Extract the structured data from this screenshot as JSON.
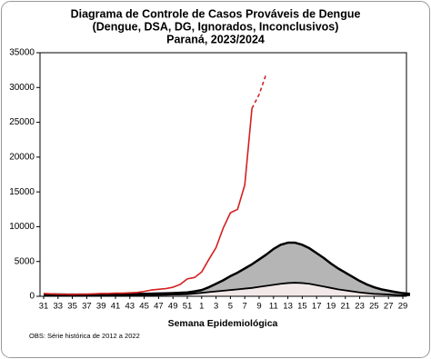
{
  "chart_data": {
    "type": "line",
    "title": [
      "Diagrama de Controle de Casos Prováveis de Dengue",
      "(Dengue, DSA, DG, Ignorados, Inconclusivos)",
      "Paraná, 2023/2024"
    ],
    "x_label": "Semana Epidemiológica",
    "note": "OBS: Série histórica de 2012 a 2022",
    "categories": [
      "31",
      null,
      "33",
      null,
      "35",
      null,
      "37",
      null,
      "39",
      null,
      "41",
      null,
      "43",
      null,
      "45",
      null,
      "47",
      null,
      "49",
      null,
      "51",
      null,
      "1",
      null,
      "3",
      null,
      "5",
      null,
      "7",
      null,
      "9",
      null,
      "11",
      null,
      "13",
      null,
      "15",
      null,
      "17",
      null,
      "19",
      null,
      "21",
      null,
      "23",
      null,
      "25",
      null,
      "27",
      null,
      "29",
      null
    ],
    "ylim": [
      0,
      35000
    ],
    "yticks": [
      0,
      5000,
      10000,
      15000,
      20000,
      25000,
      30000,
      35000
    ],
    "series": [
      {
        "color": "#d9d9d9",
        "fill": "#b5b5b5",
        "line_width": 2.5,
        "line_color": "#000000",
        "values": [
          300,
          280,
          260,
          250,
          250,
          250,
          250,
          250,
          260,
          270,
          280,
          300,
          320,
          340,
          360,
          380,
          400,
          430,
          460,
          500,
          560,
          700,
          900,
          1300,
          1800,
          2300,
          2900,
          3400,
          4000,
          4600,
          5300,
          6000,
          6800,
          7400,
          7700,
          7700,
          7400,
          6900,
          6200,
          5500,
          4700,
          4000,
          3400,
          2800,
          2200,
          1700,
          1300,
          1000,
          800,
          600,
          450,
          350
        ]
      },
      {
        "color": "#000000",
        "fill": "#f2e8e8",
        "line_width": 1.8,
        "line_color": "#000000",
        "values": [
          150,
          150,
          140,
          140,
          130,
          130,
          130,
          130,
          140,
          140,
          150,
          150,
          160,
          170,
          180,
          190,
          200,
          220,
          240,
          270,
          300,
          400,
          500,
          600,
          700,
          800,
          900,
          1000,
          1100,
          1200,
          1350,
          1500,
          1650,
          1800,
          1900,
          1950,
          1900,
          1800,
          1600,
          1400,
          1200,
          1000,
          850,
          700,
          550,
          450,
          350,
          300,
          250,
          200,
          150,
          150
        ]
      },
      {
        "color": "#d42020",
        "line_width": 1.6,
        "dash": false,
        "values": [
          400,
          350,
          300,
          300,
          250,
          300,
          300,
          350,
          400,
          400,
          450,
          450,
          500,
          550,
          700,
          900,
          1000,
          1100,
          1300,
          1700,
          2500,
          2700,
          3500,
          5300,
          7000,
          9800,
          12000,
          12500,
          16000,
          27000,
          null,
          null,
          null,
          null,
          null,
          null,
          null,
          null,
          null,
          null,
          null,
          null,
          null,
          null,
          null,
          null,
          null,
          null,
          null,
          null,
          null,
          null
        ]
      },
      {
        "color": "#d42020",
        "line_width": 1.6,
        "dash": true,
        "values": [
          null,
          null,
          null,
          null,
          null,
          null,
          null,
          null,
          null,
          null,
          null,
          null,
          null,
          null,
          null,
          null,
          null,
          null,
          null,
          null,
          null,
          null,
          null,
          null,
          null,
          null,
          null,
          null,
          null,
          27000,
          29000,
          32000,
          null,
          null,
          null,
          null,
          null,
          null,
          null,
          null,
          null,
          null,
          null,
          null,
          null,
          null,
          null,
          null,
          null,
          null,
          null,
          null
        ]
      }
    ]
  }
}
